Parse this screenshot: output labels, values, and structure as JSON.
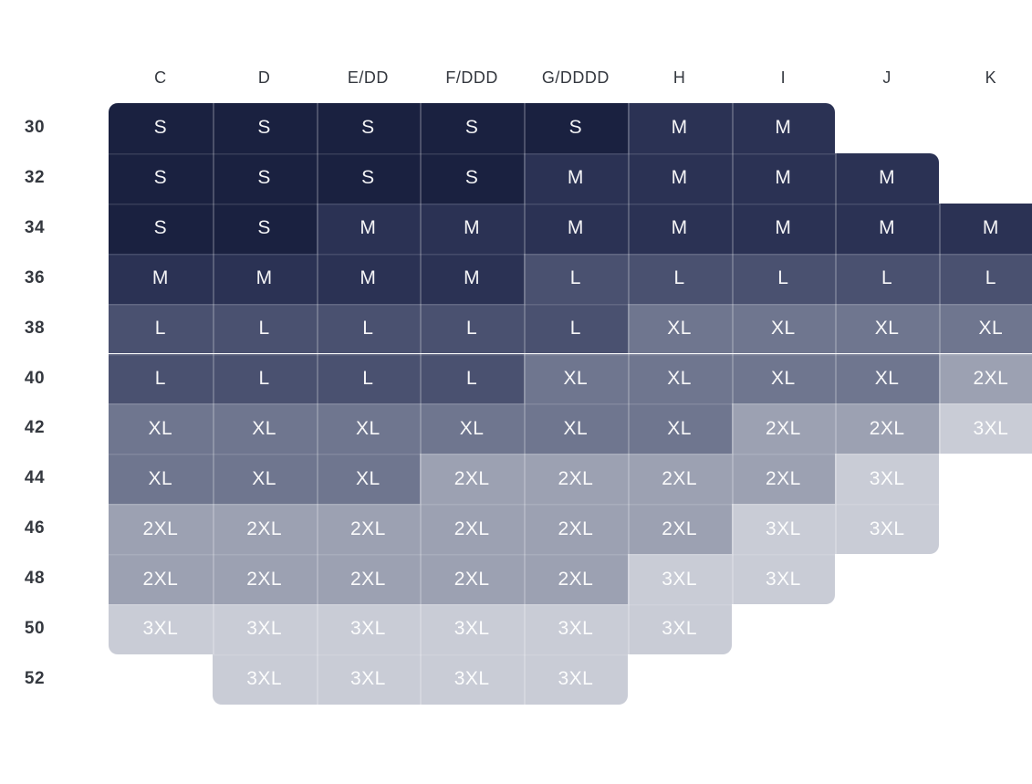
{
  "chart_data": {
    "type": "heatmap",
    "title": "",
    "xlabel": "",
    "ylabel": "",
    "legend_position": "none",
    "grid": false,
    "x_categories": [
      "C",
      "D",
      "E/DD",
      "F/DDD",
      "G/DDDD",
      "H",
      "I",
      "J",
      "K"
    ],
    "y_categories": [
      "30",
      "32",
      "34",
      "36",
      "38",
      "40",
      "42",
      "44",
      "46",
      "48",
      "50",
      "52"
    ],
    "cells": [
      [
        "S",
        "S",
        "S",
        "S",
        "S",
        "M",
        "M",
        null,
        null
      ],
      [
        "S",
        "S",
        "S",
        "S",
        "M",
        "M",
        "M",
        "M",
        null
      ],
      [
        "S",
        "S",
        "M",
        "M",
        "M",
        "M",
        "M",
        "M",
        "M"
      ],
      [
        "M",
        "M",
        "M",
        "M",
        "L",
        "L",
        "L",
        "L",
        "L"
      ],
      [
        "L",
        "L",
        "L",
        "L",
        "L",
        "XL",
        "XL",
        "XL",
        "XL"
      ],
      [
        "L",
        "L",
        "L",
        "L",
        "XL",
        "XL",
        "XL",
        "XL",
        "2XL"
      ],
      [
        "XL",
        "XL",
        "XL",
        "XL",
        "XL",
        "XL",
        "2XL",
        "2XL",
        "3XL"
      ],
      [
        "XL",
        "XL",
        "XL",
        "2XL",
        "2XL",
        "2XL",
        "2XL",
        "3XL",
        null
      ],
      [
        "2XL",
        "2XL",
        "2XL",
        "2XL",
        "2XL",
        "2XL",
        "3XL",
        "3XL",
        null
      ],
      [
        "2XL",
        "2XL",
        "2XL",
        "2XL",
        "2XL",
        "3XL",
        "3XL",
        null,
        null
      ],
      [
        "3XL",
        "3XL",
        "3XL",
        "3XL",
        "3XL",
        "3XL",
        null,
        null,
        null
      ],
      [
        null,
        "3XL",
        "3XL",
        "3XL",
        "3XL",
        null,
        null,
        null,
        null
      ]
    ],
    "size_colors": {
      "S": "#1a2140",
      "M": "#2b3254",
      "L": "#4a5170",
      "XL": "#6f768f",
      "2XL": "#9ca1b2",
      "3XL": "#c9ccd6"
    },
    "cell_text_color": "#ffffff",
    "label_color": "#34383f"
  }
}
